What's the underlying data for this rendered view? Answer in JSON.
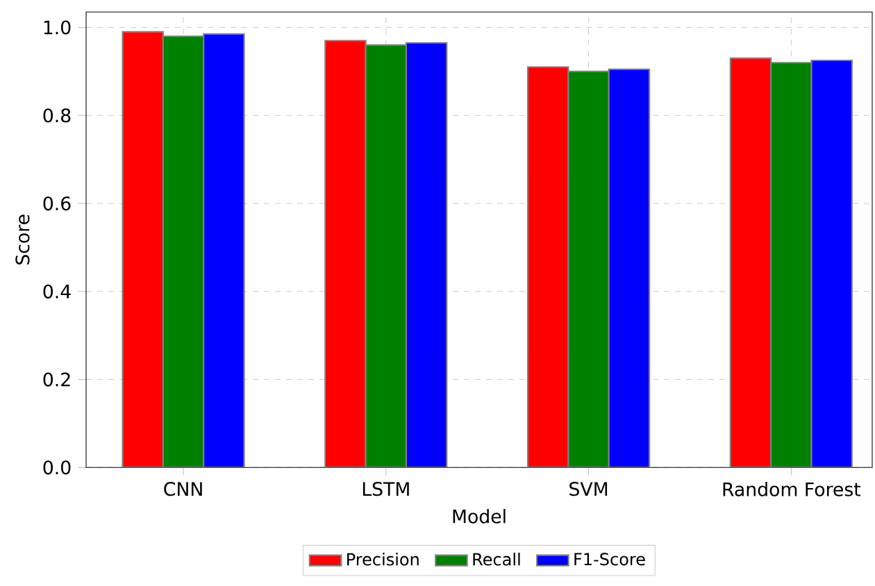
{
  "chart_data": {
    "type": "bar",
    "xlabel": "Model",
    "ylabel": "Score",
    "categories": [
      "CNN",
      "LSTM",
      "SVM",
      "Random Forest"
    ],
    "series": [
      {
        "name": "Precision",
        "color": "#ff0000",
        "values": [
          0.99,
          0.97,
          0.91,
          0.93
        ]
      },
      {
        "name": "Recall",
        "color": "#008000",
        "values": [
          0.98,
          0.96,
          0.9,
          0.92
        ]
      },
      {
        "name": "F1-Score",
        "color": "#0000ff",
        "values": [
          0.985,
          0.965,
          0.905,
          0.925
        ]
      }
    ],
    "ylim": [
      0,
      1.035
    ],
    "yticks": [
      {
        "value": 0,
        "label": "0.0"
      },
      0.2,
      0.4,
      0.6,
      0.8,
      {
        "value": 1,
        "label": "1.0"
      }
    ],
    "grid": true,
    "legend": "bottom"
  }
}
